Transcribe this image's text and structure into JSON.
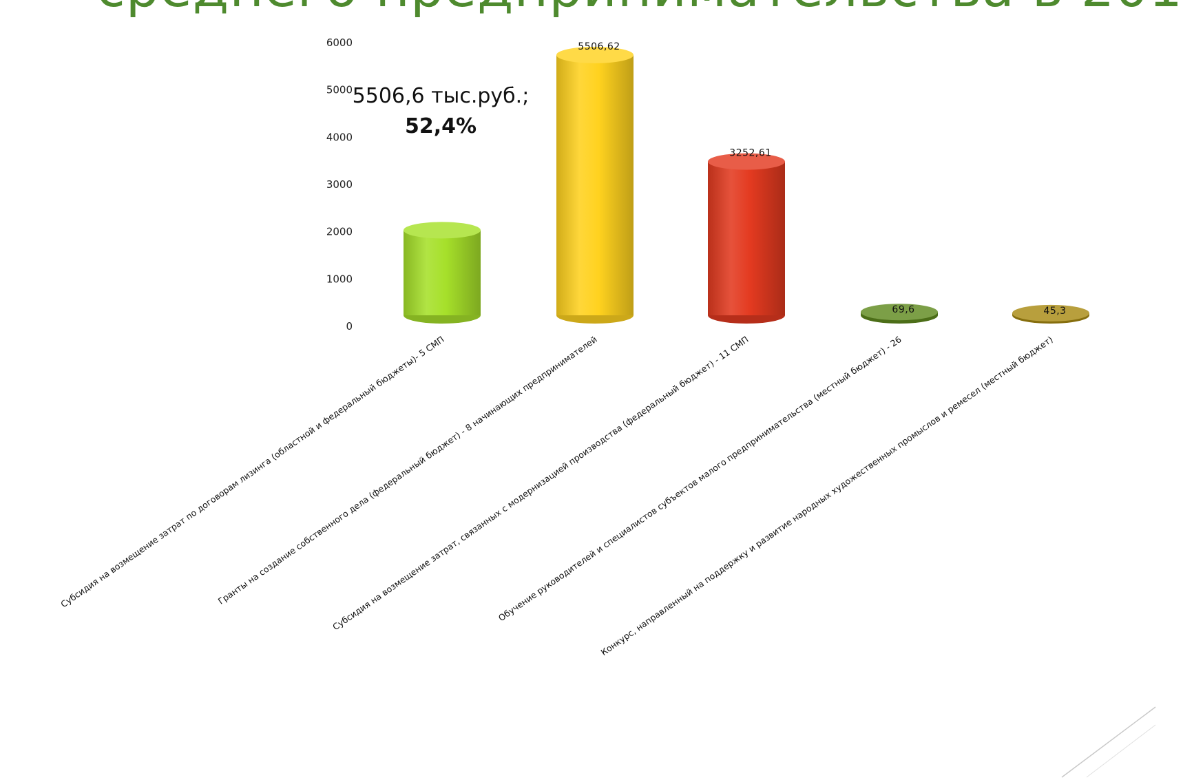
{
  "slide": {
    "title": "среднего предпринимательства в 201"
  },
  "annotation": {
    "amount": "5506,6 тыс.руб.;",
    "percent": "52,4%"
  },
  "chart_data": {
    "type": "bar",
    "style": "3d-cylinder",
    "ylim": [
      0,
      6000
    ],
    "yticks": [
      0,
      1000,
      2000,
      3000,
      4000,
      5000,
      6000
    ],
    "grid": false,
    "categories": [
      "Субсидия на возмещение затрат по договорам лизинга (областной и федеральный бюджеты)- 5 СМП",
      "Гранты на создание собственного дела (федеральный бюджет) - 8 начинающих предпринимателей",
      "Субсидия на возмещение затрат, связанных с модернизацией производства (федеральный бюджет) - 11 СМП",
      "Обучение руководителей и специалистов субъектов малого предпринимательства  (местный бюджет) - 26",
      "Конкурс, направленный на поддержку и развитие народных художественных промыслов и ремесел (местный бюджет)"
    ],
    "values": [
      1800,
      5506.62,
      3252.61,
      69.6,
      45.3
    ],
    "data_labels": [
      "",
      "5506,62",
      "3252,61",
      "69,6",
      "45,3"
    ],
    "colors": [
      "#a6e02a",
      "#ffd21f",
      "#e33a20",
      "#5f8a1e",
      "#a88a12"
    ]
  }
}
